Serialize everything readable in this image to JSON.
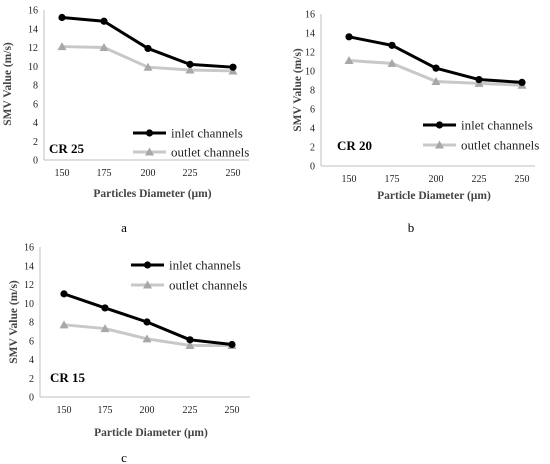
{
  "colors": {
    "inlet": "#000000",
    "outlet": "#c8c8c8",
    "outlet_marker": "#a8a8a8",
    "axis": "#bfbfbf"
  },
  "chart_data": [
    {
      "type": "line",
      "panel_letter": "a",
      "cr_label": "CR 25",
      "xlabel": "Particles Diameter (µm)",
      "ylabel": "SMV Value (m/s)",
      "categories": [
        "150",
        "175",
        "200",
        "225",
        "250"
      ],
      "ylim": [
        0,
        16
      ],
      "yticks": [
        0,
        2,
        4,
        6,
        8,
        10,
        12,
        14,
        16
      ],
      "grid": false,
      "legend_position": "bottom-right",
      "series": [
        {
          "name": "inlet channels",
          "marker": "circle",
          "values": [
            15.2,
            14.8,
            11.9,
            10.2,
            9.9
          ]
        },
        {
          "name": "outlet channels",
          "marker": "triangle",
          "values": [
            12.1,
            12.0,
            9.9,
            9.6,
            9.5
          ]
        }
      ]
    },
    {
      "type": "line",
      "panel_letter": "b",
      "cr_label": "CR 20",
      "xlabel": "Particle Diameter (µm)",
      "ylabel": "SMV Value (m/s)",
      "categories": [
        "150",
        "175",
        "200",
        "225",
        "250"
      ],
      "ylim": [
        0,
        16
      ],
      "yticks": [
        0,
        2,
        4,
        6,
        8,
        10,
        12,
        14,
        16
      ],
      "grid": false,
      "legend_position": "bottom-right",
      "series": [
        {
          "name": "inlet channels",
          "marker": "circle",
          "values": [
            13.6,
            12.7,
            10.3,
            9.1,
            8.8
          ]
        },
        {
          "name": "outlet channels",
          "marker": "triangle",
          "values": [
            11.1,
            10.8,
            8.9,
            8.7,
            8.5
          ]
        }
      ]
    },
    {
      "type": "line",
      "panel_letter": "c",
      "cr_label": "CR 15",
      "xlabel": "Particle Diameter (µm)",
      "ylabel": "SMV Value (m/s)",
      "categories": [
        "150",
        "175",
        "200",
        "225",
        "250"
      ],
      "ylim": [
        0,
        16
      ],
      "yticks": [
        0,
        2,
        4,
        6,
        8,
        10,
        12,
        14,
        16
      ],
      "grid": false,
      "legend_position": "top-right",
      "series": [
        {
          "name": "inlet channels",
          "marker": "circle",
          "values": [
            11.0,
            9.5,
            8.0,
            6.1,
            5.6
          ]
        },
        {
          "name": "outlet channels",
          "marker": "triangle",
          "values": [
            7.7,
            7.3,
            6.2,
            5.5,
            5.5
          ]
        }
      ]
    }
  ]
}
